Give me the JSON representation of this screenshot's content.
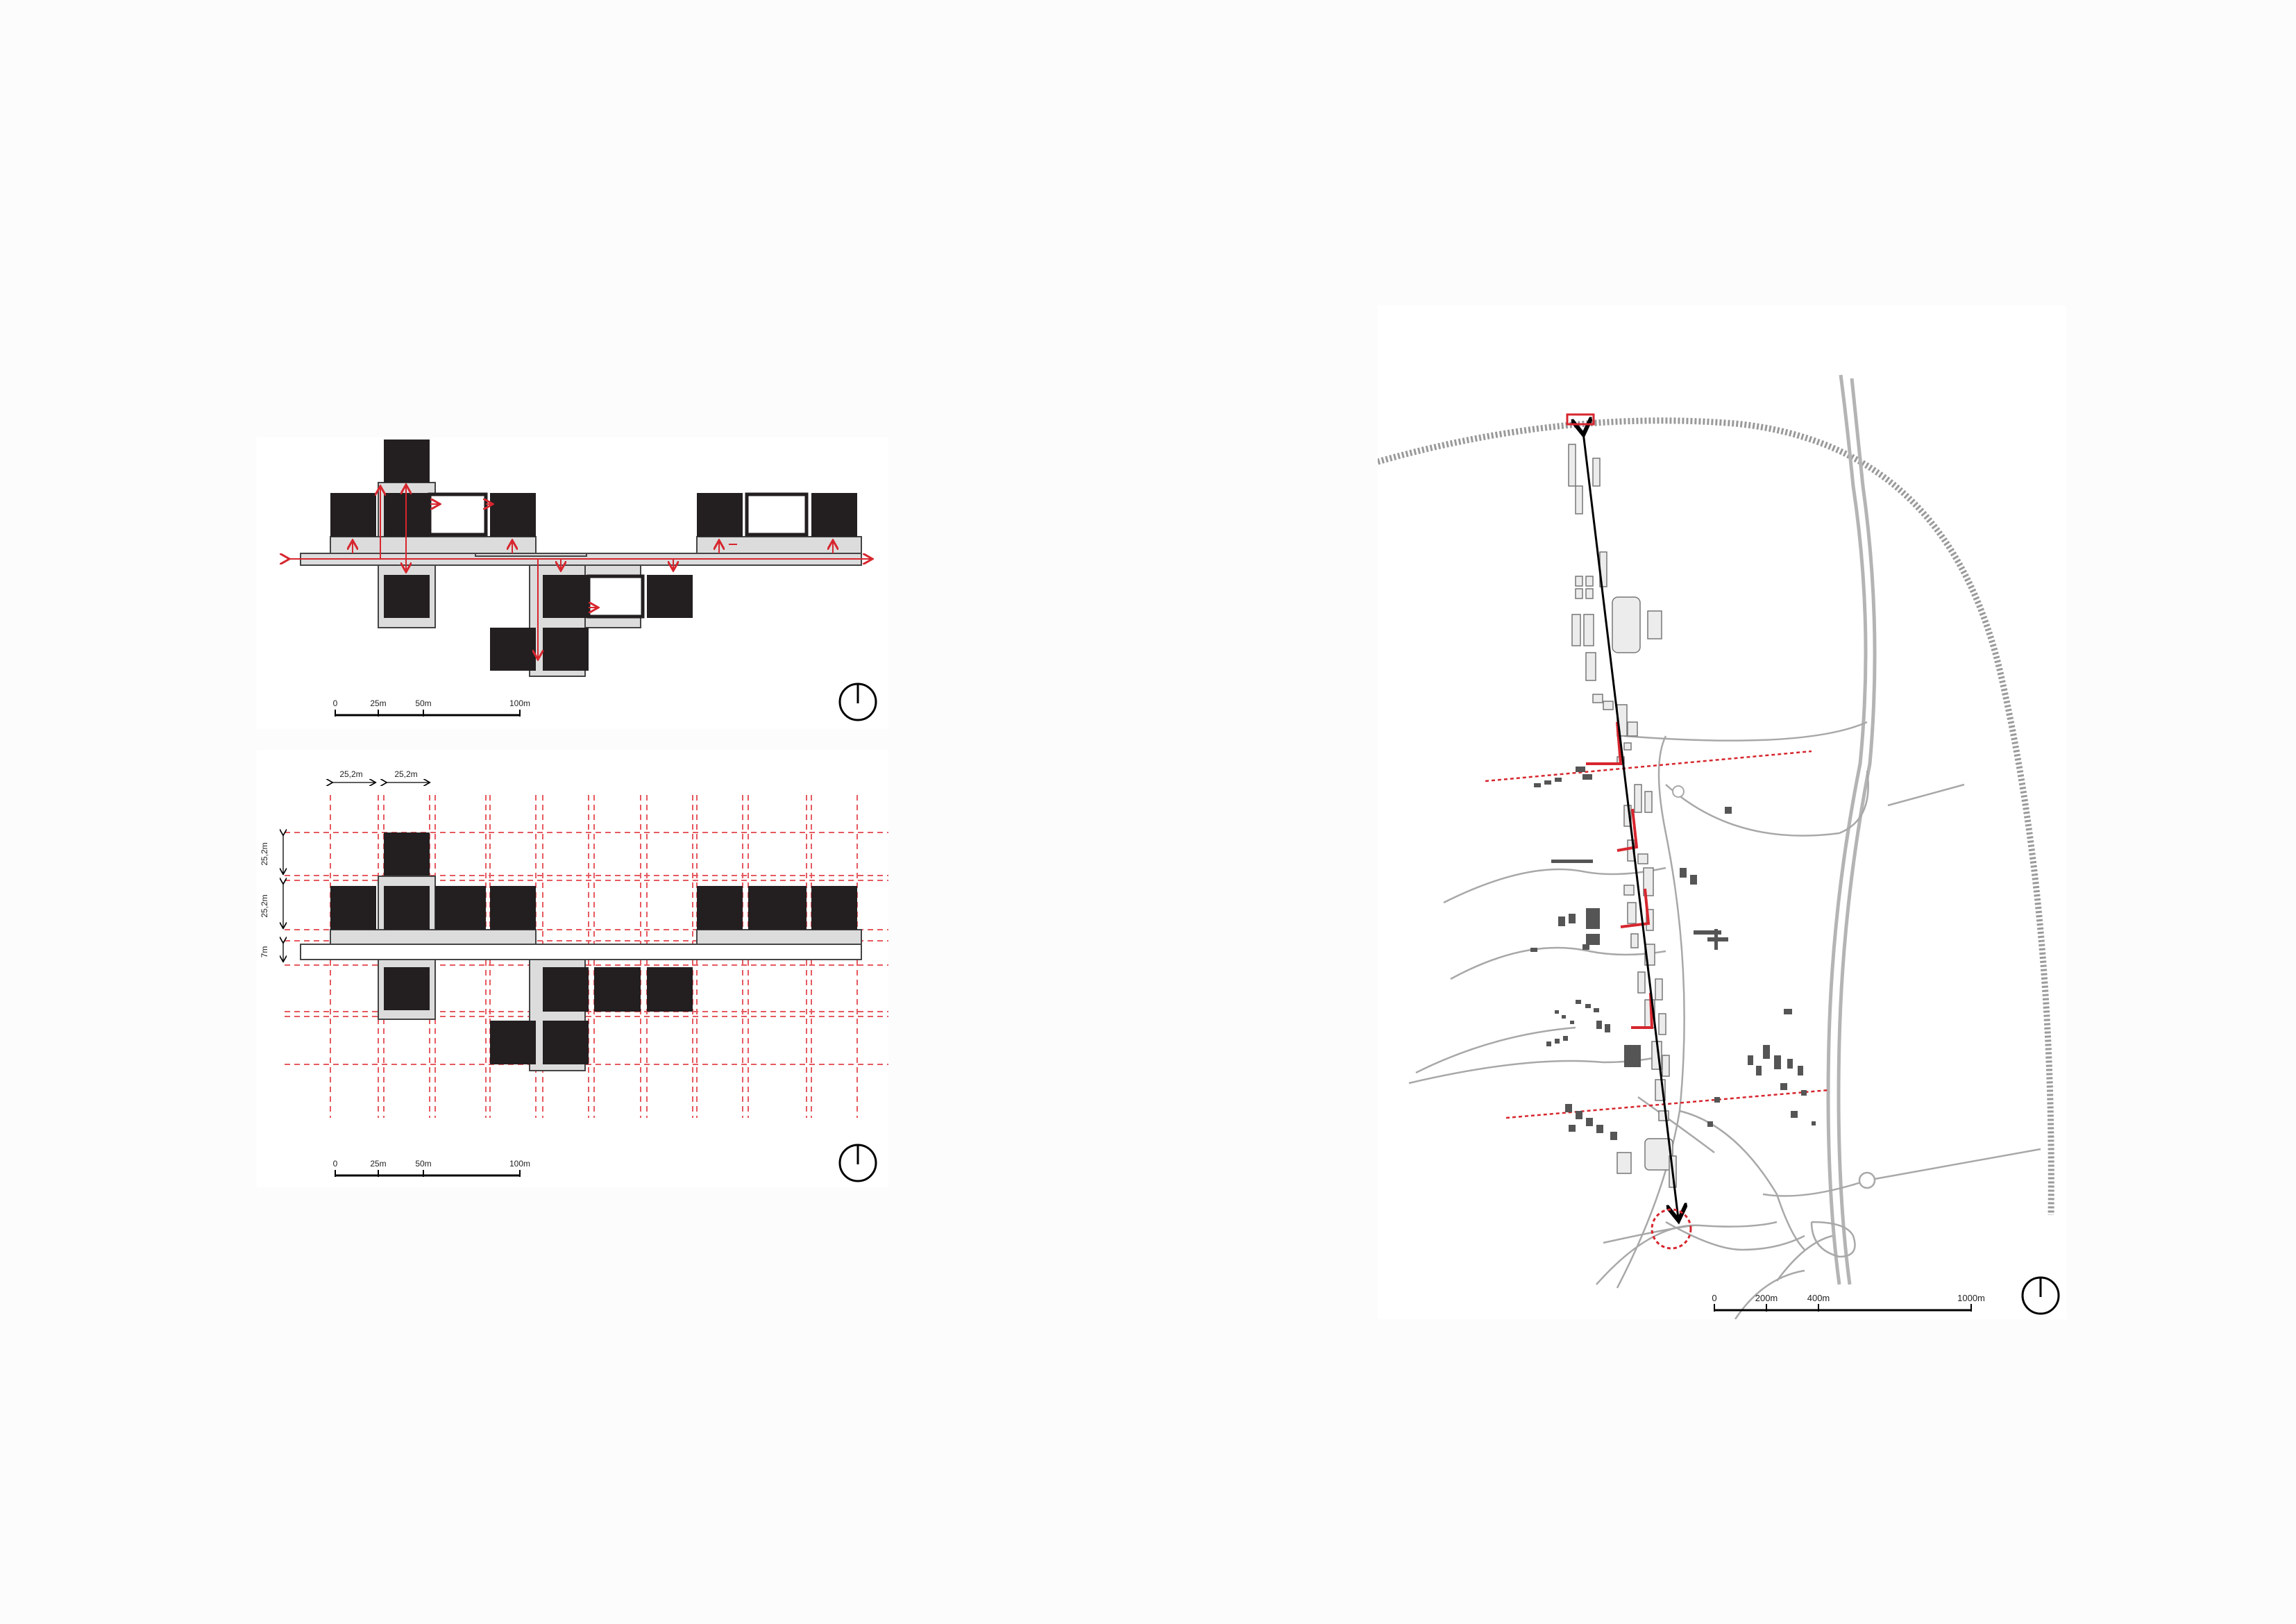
{
  "plan_top": {
    "scale": {
      "ticks": [
        "0",
        "25m",
        "50m",
        "100m"
      ]
    }
  },
  "plan_grid": {
    "dimensions": {
      "module_a": "25,2m",
      "module_b": "25,2m",
      "row_a": "25,2m",
      "row_b": "25,2m",
      "corridor": "7m"
    },
    "scale": {
      "ticks": [
        "0",
        "25m",
        "50m",
        "100m"
      ]
    }
  },
  "site_map": {
    "scale": {
      "ticks": [
        "0",
        "200m",
        "400m",
        "1000m"
      ]
    }
  },
  "colors": {
    "black_block": "#231f20",
    "accent_red": "#d7262e",
    "grey_fill": "#dcdcdc",
    "road_grey": "#b4b4b4",
    "rail_grey": "#9a9a9a"
  },
  "icons": [
    "north-arrow-icon",
    "north-arrow-icon",
    "north-arrow-icon"
  ]
}
